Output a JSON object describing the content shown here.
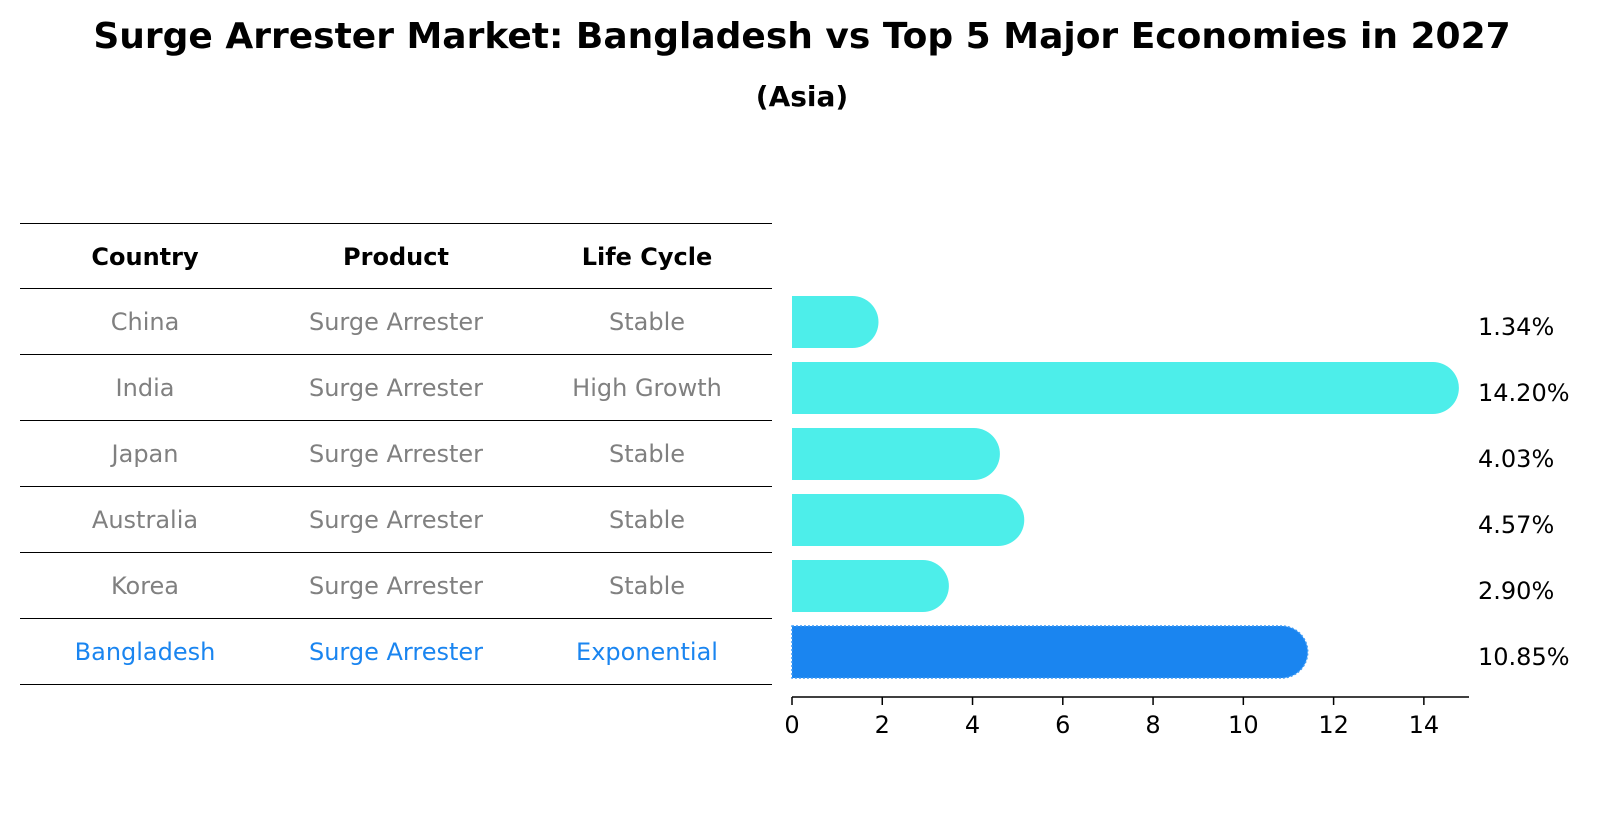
{
  "title": "Surge Arrester Market: Bangladesh vs Top 5 Major Economies in 2027",
  "subtitle": "(Asia)",
  "table": {
    "headers": [
      "Country",
      "Product",
      "Life Cycle"
    ],
    "rows": [
      {
        "country": "China",
        "product": "Surge Arrester",
        "life_cycle": "Stable",
        "highlight": false
      },
      {
        "country": "India",
        "product": "Surge Arrester",
        "life_cycle": "High Growth",
        "highlight": false
      },
      {
        "country": "Japan",
        "product": "Surge Arrester",
        "life_cycle": "Stable",
        "highlight": false
      },
      {
        "country": "Australia",
        "product": "Surge Arrester",
        "life_cycle": "Stable",
        "highlight": false
      },
      {
        "country": "Korea",
        "product": "Surge Arrester",
        "life_cycle": "Stable",
        "highlight": false
      },
      {
        "country": "Bangladesh",
        "product": "Surge Arrester",
        "life_cycle": "Exponential",
        "highlight": true
      }
    ]
  },
  "colors": {
    "bar": "#4DEEEA",
    "highlight_bar": "#1A85F0",
    "row_text": "#808080",
    "highlight_text": "#1A85F0"
  },
  "chart_data": {
    "type": "bar",
    "orientation": "horizontal",
    "categories": [
      "China",
      "India",
      "Japan",
      "Australia",
      "Korea",
      "Bangladesh"
    ],
    "values": [
      1.34,
      14.2,
      4.03,
      4.57,
      2.9,
      10.85
    ],
    "value_labels": [
      "1.34%",
      "14.20%",
      "4.03%",
      "4.57%",
      "2.90%",
      "10.85%"
    ],
    "highlight_index": 5,
    "xlim": [
      0,
      15
    ],
    "xticks": [
      0,
      2,
      4,
      6,
      8,
      10,
      12,
      14
    ],
    "grid": false
  }
}
